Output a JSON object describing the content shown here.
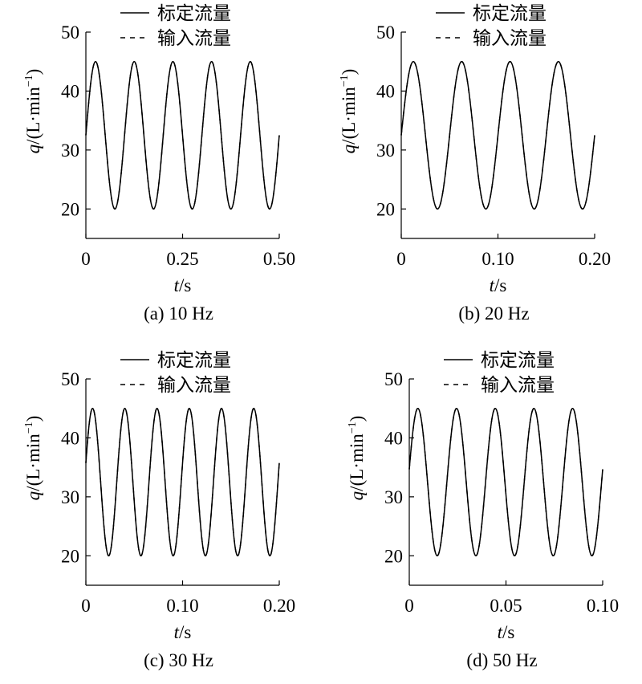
{
  "figure": {
    "legend": {
      "solid": "标定流量",
      "dashed": "输入流量"
    },
    "ylabel": {
      "q": "q",
      "open": "/(L·min",
      "exp": "−1",
      "close": ")"
    },
    "xlabel": {
      "t": "t",
      "unit": "/s"
    }
  },
  "chart_data": [
    {
      "type": "line",
      "caption": "(a) 10 Hz",
      "frequency_hz": 10,
      "xlim": [
        0,
        0.5
      ],
      "ylim": [
        15,
        50
      ],
      "xticks": [
        0,
        0.25,
        0.5
      ],
      "xtick_labels": [
        "0",
        "0.25",
        "0.50"
      ],
      "yticks": [
        20,
        30,
        40,
        50
      ],
      "ytick_labels": [
        "20",
        "30",
        "40",
        "50"
      ],
      "xlabel": "t/s",
      "ylabel": "q/(L·min−1)",
      "legend": "top-left",
      "grid": false,
      "series": [
        {
          "name": "标定流量",
          "style": "solid",
          "mean": 32.5,
          "amplitude": 12.5,
          "frequency_hz": 10,
          "phase_deg": 0,
          "x_range": [
            0,
            0.5
          ]
        },
        {
          "name": "输入流量",
          "style": "dashed",
          "mean": 32.5,
          "amplitude": 12.5,
          "frequency_hz": 10,
          "phase_deg": 0,
          "x_range": [
            0,
            0.5
          ]
        }
      ]
    },
    {
      "type": "line",
      "caption": "(b) 20 Hz",
      "frequency_hz": 20,
      "xlim": [
        0,
        0.2
      ],
      "ylim": [
        15,
        50
      ],
      "xticks": [
        0,
        0.1,
        0.2
      ],
      "xtick_labels": [
        "0",
        "0.10",
        "0.20"
      ],
      "yticks": [
        20,
        30,
        40,
        50
      ],
      "ytick_labels": [
        "20",
        "30",
        "40",
        "50"
      ],
      "xlabel": "t/s",
      "ylabel": "q/(L·min−1)",
      "legend": "top-left",
      "grid": false,
      "series": [
        {
          "name": "标定流量",
          "style": "solid",
          "mean": 32.5,
          "amplitude": 12.5,
          "frequency_hz": 20,
          "phase_deg": 0,
          "x_range": [
            0,
            0.2
          ]
        },
        {
          "name": "输入流量",
          "style": "dashed",
          "mean": 32.5,
          "amplitude": 12.5,
          "frequency_hz": 20,
          "phase_deg": 0,
          "x_range": [
            0,
            0.2
          ]
        }
      ]
    },
    {
      "type": "line",
      "caption": "(c) 30 Hz",
      "frequency_hz": 30,
      "xlim": [
        0,
        0.2
      ],
      "ylim": [
        15,
        50
      ],
      "xticks": [
        0,
        0.1,
        0.2
      ],
      "xtick_labels": [
        "0",
        "0.10",
        "0.20"
      ],
      "yticks": [
        20,
        30,
        40,
        50
      ],
      "ytick_labels": [
        "20",
        "30",
        "40",
        "50"
      ],
      "xlabel": "t/s",
      "ylabel": "q/(L·min−1)",
      "legend": "top-left",
      "grid": false,
      "series": [
        {
          "name": "标定流量",
          "style": "solid",
          "mean": 32.5,
          "amplitude": 12.5,
          "frequency_hz": 30,
          "phase_deg": 15,
          "x_range": [
            0,
            0.2
          ]
        },
        {
          "name": "输入流量",
          "style": "dashed",
          "mean": 32.5,
          "amplitude": 12.5,
          "frequency_hz": 30,
          "phase_deg": 15,
          "x_range": [
            0,
            0.2
          ]
        }
      ]
    },
    {
      "type": "line",
      "caption": "(d) 50 Hz",
      "frequency_hz": 50,
      "xlim": [
        0,
        0.1
      ],
      "ylim": [
        15,
        50
      ],
      "xticks": [
        0,
        0.05,
        0.1
      ],
      "xtick_labels": [
        "0",
        "0.05",
        "0.10"
      ],
      "yticks": [
        20,
        30,
        40,
        50
      ],
      "ytick_labels": [
        "20",
        "30",
        "40",
        "50"
      ],
      "xlabel": "t/s",
      "ylabel": "q/(L·min−1)",
      "legend": "top-left",
      "grid": false,
      "series": [
        {
          "name": "标定流量",
          "style": "solid",
          "mean": 32.5,
          "amplitude": 12.5,
          "frequency_hz": 50,
          "phase_deg": 10,
          "x_range": [
            0,
            0.1
          ]
        },
        {
          "name": "输入流量",
          "style": "dashed",
          "mean": 32.5,
          "amplitude": 12.5,
          "frequency_hz": 50,
          "phase_deg": 10,
          "x_range": [
            0,
            0.1
          ]
        }
      ]
    }
  ]
}
